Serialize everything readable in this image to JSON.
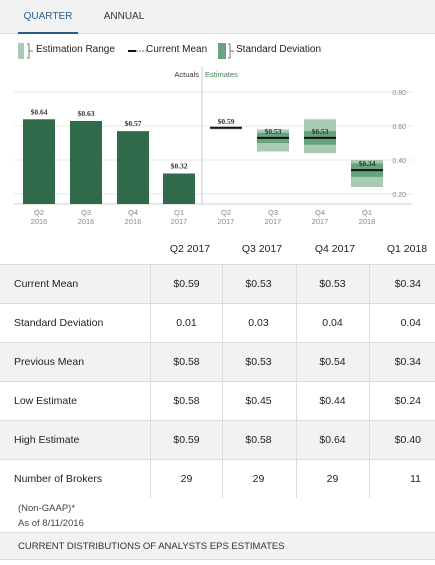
{
  "tabs": [
    {
      "label": "QUARTER",
      "active": true
    },
    {
      "label": "ANNUAL",
      "active": false
    }
  ],
  "legend": {
    "estimation_range": "Estimation Range",
    "current_mean": "Current Mean",
    "standard_deviation": "Standard Deviation"
  },
  "colors": {
    "bar": "#2f6b4a",
    "range": "#a9cbb4",
    "std": "#67a37c",
    "mean_line": "#111111",
    "grid": "#e8e8e8",
    "tab_active": "#2a5d8a"
  },
  "chart_data": {
    "type": "bar",
    "divider_labels": {
      "actuals": "Actuals",
      "estimates": "Estimates"
    },
    "y_ticks": [
      "0.80",
      "0.60",
      "0.40",
      "0.20"
    ],
    "ylim": [
      0.14,
      0.86
    ],
    "actuals": [
      {
        "x_label": [
          "Q2",
          "2016"
        ],
        "value": 0.64,
        "label": "$0.64"
      },
      {
        "x_label": [
          "Q3",
          "2016"
        ],
        "value": 0.63,
        "label": "$0.63"
      },
      {
        "x_label": [
          "Q4",
          "2016"
        ],
        "value": 0.57,
        "label": "$0.57"
      },
      {
        "x_label": [
          "Q1",
          "2017"
        ],
        "value": 0.32,
        "label": "$0.32"
      }
    ],
    "estimates": [
      {
        "x_label": [
          "Q2",
          "2017"
        ],
        "mean": 0.59,
        "std": 0.01,
        "low": 0.58,
        "high": 0.59,
        "label": "$0.59"
      },
      {
        "x_label": [
          "Q3",
          "2017"
        ],
        "mean": 0.53,
        "std": 0.03,
        "low": 0.45,
        "high": 0.58,
        "label": "$0.53"
      },
      {
        "x_label": [
          "Q4",
          "2017"
        ],
        "mean": 0.53,
        "std": 0.04,
        "low": 0.44,
        "high": 0.64,
        "label": "$0.53"
      },
      {
        "x_label": [
          "Q1",
          "2018"
        ],
        "mean": 0.34,
        "std": 0.04,
        "low": 0.24,
        "high": 0.4,
        "label": "$0.34"
      }
    ]
  },
  "table": {
    "columns": [
      "Q2 2017",
      "Q3 2017",
      "Q4 2017",
      "Q1 2018"
    ],
    "rows": [
      {
        "label": "Current Mean",
        "values": [
          "$0.59",
          "$0.53",
          "$0.53",
          "$0.34"
        ]
      },
      {
        "label": "Standard Deviation",
        "values": [
          "0.01",
          "0.03",
          "0.04",
          "0.04"
        ]
      },
      {
        "label": "Previous Mean",
        "values": [
          "$0.58",
          "$0.53",
          "$0.54",
          "$0.34"
        ]
      },
      {
        "label": "Low Estimate",
        "values": [
          "$0.58",
          "$0.45",
          "$0.44",
          "$0.24"
        ]
      },
      {
        "label": "High Estimate",
        "values": [
          "$0.59",
          "$0.58",
          "$0.64",
          "$0.40"
        ]
      },
      {
        "label": "Number of Brokers",
        "values": [
          "29",
          "29",
          "29",
          "11"
        ]
      }
    ]
  },
  "notes": {
    "non_gaap": "(Non-GAAP)*",
    "as_of": "As of 8/11/2016"
  },
  "footer": "CURRENT DISTRIBUTIONS OF ANALYSTS EPS ESTIMATES"
}
